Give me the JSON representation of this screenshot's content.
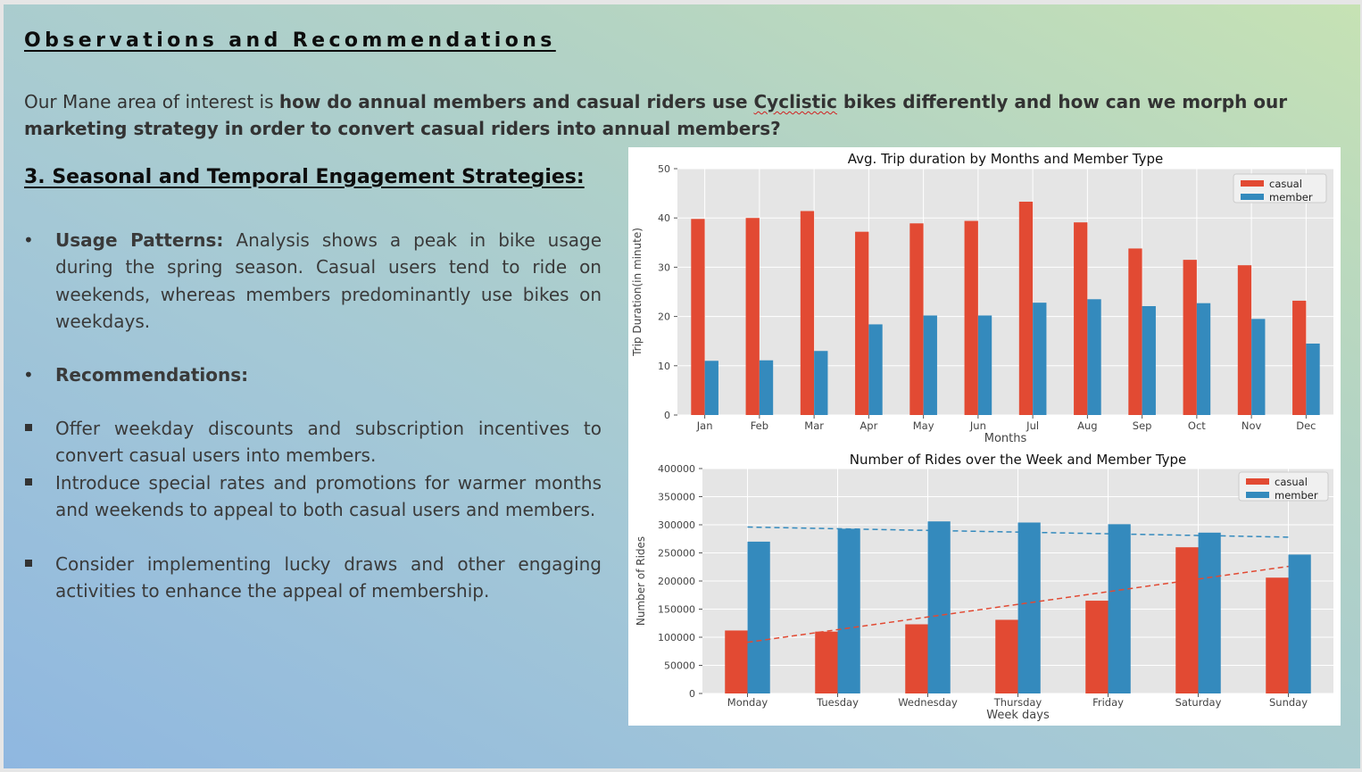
{
  "slide": {
    "title": "Observations and Recommendations",
    "intro": {
      "lead": " Our Mane area of interest is ",
      "bold1": "how do annual members and casual riders use ",
      "brand": "Cyclistic",
      "bold2": " bikes differently and how can we morph our marketing strategy in order to convert casual riders into annual members?"
    },
    "section_heading": "3. Seasonal and Temporal Engagement Strategies:",
    "usage": {
      "label": "Usage Patterns:",
      "text": " Analysis shows a peak in bike usage during the spring season. Casual users tend to ride on weekends, whereas members predominantly use bikes on weekdays."
    },
    "recommendations_label": "Recommendations:",
    "recommendations": [
      "Offer weekday discounts and subscription incentives to convert casual users into members.",
      "Introduce special rates and promotions for warmer months and weekends to appeal to both casual users and members.",
      "Consider implementing lucky draws and other engaging activities to enhance the appeal of membership."
    ]
  },
  "colors": {
    "casual": "#e24a33",
    "member": "#348abd",
    "plot_bg": "#e5e5e5"
  },
  "chart_data": [
    {
      "type": "bar",
      "title": "Avg. Trip duration by Months and Member Type",
      "xlabel": "Months",
      "ylabel": "Trip Duration(in minute)",
      "categories": [
        "Jan",
        "Feb",
        "Mar",
        "Apr",
        "May",
        "Jun",
        "Jul",
        "Aug",
        "Sep",
        "Oct",
        "Nov",
        "Dec"
      ],
      "series": [
        {
          "name": "casual",
          "values": [
            39.8,
            40.0,
            41.4,
            37.2,
            38.9,
            39.4,
            43.3,
            39.1,
            33.8,
            31.5,
            30.4,
            23.2
          ]
        },
        {
          "name": "member",
          "values": [
            11.0,
            11.1,
            13.0,
            18.4,
            20.2,
            20.2,
            22.8,
            23.5,
            22.1,
            22.7,
            19.5,
            14.5
          ]
        }
      ],
      "ylim": [
        0,
        50
      ],
      "yticks": [
        0,
        10,
        20,
        30,
        40,
        50
      ],
      "legend": "top-right",
      "grid": true
    },
    {
      "type": "bar",
      "title": "Number of Rides over the Week and Member Type",
      "xlabel": "Week days",
      "ylabel": "Number of Rides",
      "categories": [
        "Monday",
        "Tuesday",
        "Wednesday",
        "Thursday",
        "Friday",
        "Saturday",
        "Sunday"
      ],
      "series": [
        {
          "name": "casual",
          "values": [
            112000,
            110000,
            123000,
            131000,
            165000,
            260000,
            206000
          ]
        },
        {
          "name": "member",
          "values": [
            270000,
            293000,
            306000,
            304000,
            301000,
            286000,
            247000
          ]
        }
      ],
      "trendlines": [
        {
          "series": "member",
          "start": 296000,
          "end": 278000
        },
        {
          "series": "casual",
          "start": 91000,
          "end": 226000
        }
      ],
      "ylim": [
        0,
        400000
      ],
      "yticks": [
        0,
        50000,
        100000,
        150000,
        200000,
        250000,
        300000,
        350000,
        400000
      ],
      "legend": "top-right",
      "grid": true
    }
  ]
}
